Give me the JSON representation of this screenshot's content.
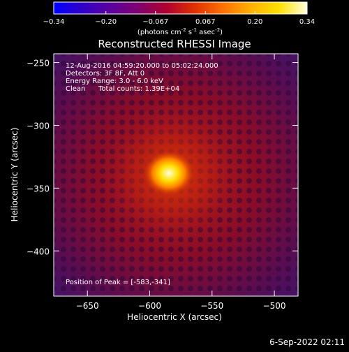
{
  "colors": {
    "background": "#000000",
    "foreground": "#ffffff",
    "colormap": [
      "#0000ff",
      "#3000c8",
      "#5a00a0",
      "#800070",
      "#b00030",
      "#e03000",
      "#ff7000",
      "#ffb000",
      "#ffe000",
      "#ffffe0"
    ]
  },
  "colorbar": {
    "ticks": [
      "-0.34",
      "-0.20",
      "-0.067",
      "0.067",
      "0.20",
      "0.34"
    ],
    "tick_values": [
      -0.34,
      -0.2,
      -0.067,
      0.067,
      0.2,
      0.34
    ],
    "range": [
      -0.34,
      0.34
    ],
    "units_main": "(photons cm",
    "units_sup1": "-2",
    "units_mid1": " s",
    "units_sup2": "-1",
    "units_mid2": " asec",
    "units_sup3": "-2",
    "units_end": ")"
  },
  "chart_data": {
    "type": "heatmap",
    "title": "Reconstructed RHESSI Image",
    "xlabel": "Heliocentric X (arcsec)",
    "ylabel": "Heliocentric Y (arcsec)",
    "xlim": [
      -677,
      -481
    ],
    "ylim": [
      -436,
      -243
    ],
    "xticks": [
      -650,
      -600,
      -550,
      -500
    ],
    "xtick_labels": [
      "−650",
      "−600",
      "−550",
      "−500"
    ],
    "yticks": [
      -250,
      -300,
      -350,
      -400
    ],
    "ytick_labels": [
      "−250",
      "−300",
      "−350",
      "−400"
    ],
    "peak": {
      "x": -583,
      "y": -341
    },
    "annotations": {
      "time_range": "12-Aug-2016 04:59:20.000 to 05:02:24.000",
      "detectors": "Detectors: 3F 8F, Att 0",
      "energy": "Energy Range: 3.0 - 6.0 keV",
      "method": "Clean",
      "counts": "Total counts: 1.39E+04",
      "peak_label": "Position of Peak = [-583,-341]"
    }
  },
  "footer": {
    "date": "6-Sep-2022 02:11"
  }
}
